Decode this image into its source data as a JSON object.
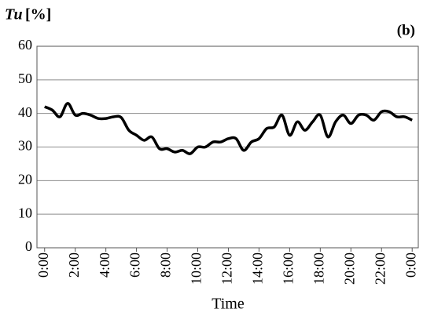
{
  "chart_data": {
    "type": "line",
    "ylabel": "Tu",
    "ylabel_unit": "[%]",
    "annotation": "(b)",
    "xlabel": "Time",
    "x": [
      0,
      0.5,
      1,
      1.5,
      2,
      2.5,
      3,
      3.5,
      4,
      4.5,
      5,
      5.5,
      6,
      6.5,
      7,
      7.5,
      8,
      8.5,
      9,
      9.5,
      10,
      10.5,
      11,
      11.5,
      12,
      12.5,
      13,
      13.5,
      14,
      14.5,
      15,
      15.5,
      16,
      16.5,
      17,
      17.5,
      18,
      18.5,
      19,
      19.5,
      20,
      20.5,
      21,
      21.5,
      22,
      22.5,
      23,
      23.5,
      24
    ],
    "series": [
      {
        "color": "#000000",
        "values": [
          42,
          41,
          39,
          43,
          39.5,
          40,
          39.5,
          38.5,
          38.5,
          39,
          38.8,
          35,
          33.5,
          32,
          33,
          29.5,
          29.5,
          28.5,
          29,
          28,
          30,
          30,
          31.5,
          31.5,
          32.5,
          32.5,
          29,
          31.5,
          32.5,
          35.5,
          36,
          39.5,
          33.5,
          37.5,
          35,
          37.5,
          39.5,
          33,
          37.5,
          39.5,
          37,
          39.5,
          39.5,
          38,
          40.5,
          40.5,
          39,
          39,
          38
        ]
      }
    ],
    "xlim": [
      -0.5,
      24.4
    ],
    "xticks": [
      {
        "value": 0,
        "label": "0:00"
      },
      {
        "value": 2,
        "label": "2:00"
      },
      {
        "value": 4,
        "label": "4:00"
      },
      {
        "value": 6,
        "label": "6:00"
      },
      {
        "value": 8,
        "label": "8:00"
      },
      {
        "value": 10,
        "label": "10:00"
      },
      {
        "value": 12,
        "label": "12:00"
      },
      {
        "value": 14,
        "label": "14:00"
      },
      {
        "value": 16,
        "label": "16:00"
      },
      {
        "value": 18,
        "label": "18:00"
      },
      {
        "value": 20,
        "label": "20:00"
      },
      {
        "value": 22,
        "label": "22:00"
      },
      {
        "value": 24,
        "label": "0:00"
      }
    ],
    "ylim": [
      0,
      60
    ],
    "yticks": [
      0,
      10,
      20,
      30,
      40,
      50,
      60
    ],
    "grid": true
  }
}
